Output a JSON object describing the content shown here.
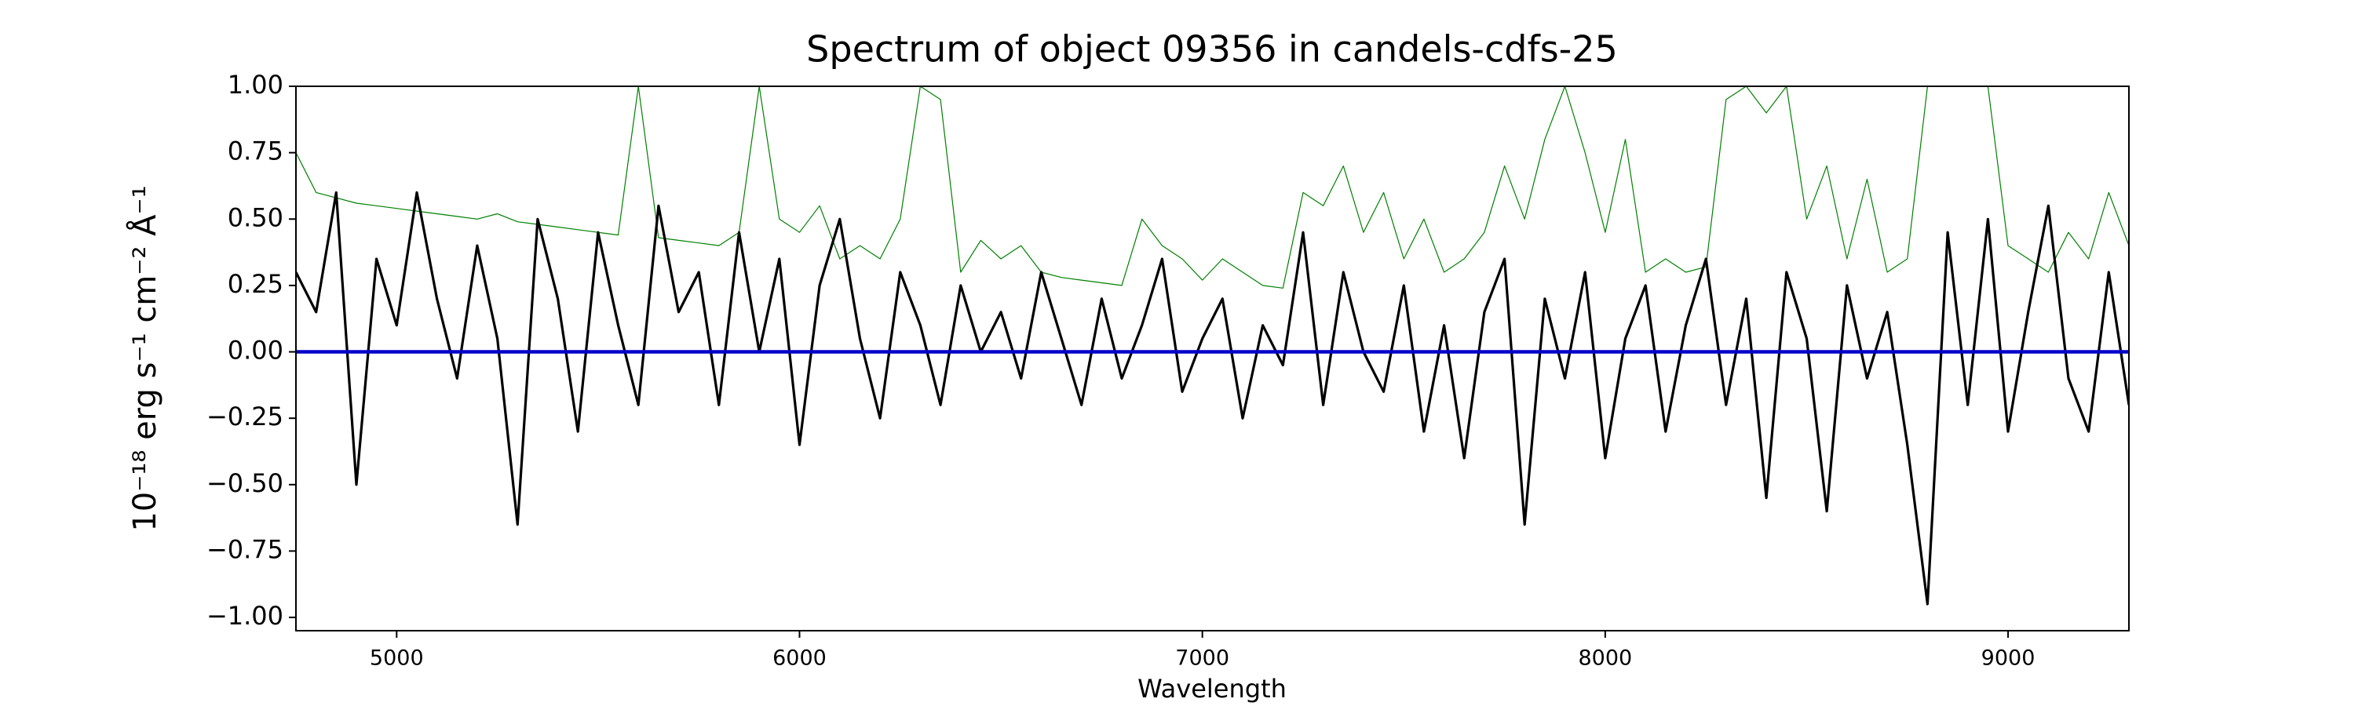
{
  "chart_data": {
    "type": "line",
    "title": "Spectrum of object 09356 in candels-cdfs-25",
    "xlabel": "Wavelength",
    "ylabel": "10⁻¹⁸ erg s⁻¹ cm⁻² Å⁻¹",
    "xlim": [
      4750,
      9300
    ],
    "ylim": [
      -1.05,
      1.0
    ],
    "xticks": [
      5000,
      6000,
      7000,
      8000,
      9000
    ],
    "yticks": [
      {
        "value": -1.0,
        "label": "−1.00"
      },
      {
        "value": -0.75,
        "label": "−0.75"
      },
      {
        "value": -0.5,
        "label": "−0.50"
      },
      {
        "value": -0.25,
        "label": "−0.25"
      },
      {
        "value": 0,
        "label": "0.00"
      },
      {
        "value": 0.25,
        "label": "0.25"
      },
      {
        "value": 0.5,
        "label": "0.50"
      },
      {
        "value": 0.75,
        "label": "0.75"
      },
      {
        "value": 1.0,
        "label": "1.00"
      }
    ],
    "grid": false,
    "x": [
      4750,
      4800,
      4850,
      4900,
      4950,
      5000,
      5050,
      5100,
      5150,
      5200,
      5250,
      5300,
      5350,
      5400,
      5450,
      5500,
      5550,
      5600,
      5650,
      5700,
      5750,
      5800,
      5850,
      5900,
      5950,
      6000,
      6050,
      6100,
      6150,
      6200,
      6250,
      6300,
      6350,
      6400,
      6450,
      6500,
      6550,
      6600,
      6650,
      6700,
      6750,
      6800,
      6850,
      6900,
      6950,
      7000,
      7050,
      7100,
      7150,
      7200,
      7250,
      7300,
      7350,
      7400,
      7450,
      7500,
      7550,
      7600,
      7650,
      7700,
      7750,
      7800,
      7850,
      7900,
      7950,
      8000,
      8050,
      8100,
      8150,
      8200,
      8250,
      8300,
      8350,
      8400,
      8450,
      8500,
      8550,
      8600,
      8650,
      8700,
      8750,
      8800,
      8850,
      8900,
      8950,
      9000,
      9050,
      9100,
      9150,
      9200,
      9250,
      9300
    ],
    "series": [
      {
        "color": "#008000",
        "width": 1.2,
        "values": [
          0.75,
          0.6,
          0.58,
          0.56,
          0.55,
          0.54,
          0.53,
          0.52,
          0.51,
          0.5,
          0.52,
          0.49,
          0.48,
          0.47,
          0.46,
          0.45,
          0.44,
          1.0,
          0.43,
          0.42,
          0.41,
          0.4,
          0.45,
          1.0,
          0.5,
          0.45,
          0.55,
          0.35,
          0.4,
          0.35,
          0.5,
          1.0,
          0.95,
          0.3,
          0.42,
          0.35,
          0.4,
          0.3,
          0.28,
          0.27,
          0.26,
          0.25,
          0.5,
          0.4,
          0.35,
          0.27,
          0.35,
          0.3,
          0.25,
          0.24,
          0.6,
          0.55,
          0.7,
          0.45,
          0.6,
          0.35,
          0.5,
          0.3,
          0.35,
          0.45,
          0.7,
          0.5,
          0.8,
          1.0,
          0.75,
          0.45,
          0.8,
          0.3,
          0.35,
          0.3,
          0.32,
          0.95,
          1.0,
          0.9,
          1.0,
          0.5,
          0.7,
          0.35,
          0.65,
          0.3,
          0.35,
          1.0,
          1.0,
          1.0,
          1.0,
          0.4,
          0.35,
          0.3,
          0.45,
          0.35,
          0.6,
          0.4
        ]
      },
      {
        "color": "#000000",
        "width": 3.2,
        "values": [
          0.3,
          0.15,
          0.6,
          -0.5,
          0.35,
          0.1,
          0.6,
          0.2,
          -0.1,
          0.4,
          0.05,
          -0.65,
          0.5,
          0.2,
          -0.3,
          0.45,
          0.1,
          -0.2,
          0.55,
          0.15,
          0.3,
          -0.2,
          0.45,
          0.0,
          0.35,
          -0.35,
          0.25,
          0.5,
          0.05,
          -0.25,
          0.3,
          0.1,
          -0.2,
          0.25,
          0.0,
          0.15,
          -0.1,
          0.3,
          0.05,
          -0.2,
          0.2,
          -0.1,
          0.1,
          0.35,
          -0.15,
          0.05,
          0.2,
          -0.25,
          0.1,
          -0.05,
          0.45,
          -0.2,
          0.3,
          0.0,
          -0.15,
          0.25,
          -0.3,
          0.1,
          -0.4,
          0.15,
          0.35,
          -0.65,
          0.2,
          -0.1,
          0.3,
          -0.4,
          0.05,
          0.25,
          -0.3,
          0.1,
          0.35,
          -0.2,
          0.2,
          -0.55,
          0.3,
          0.05,
          -0.6,
          0.25,
          -0.1,
          0.15,
          -0.35,
          -0.95,
          0.45,
          -0.2,
          0.5,
          -0.3,
          0.15,
          0.55,
          -0.1,
          -0.3,
          0.3,
          -0.2
        ]
      },
      {
        "color": "#0000cc",
        "width": 4.5,
        "x": [
          4750,
          9300
        ],
        "values": [
          0,
          0
        ]
      }
    ]
  }
}
